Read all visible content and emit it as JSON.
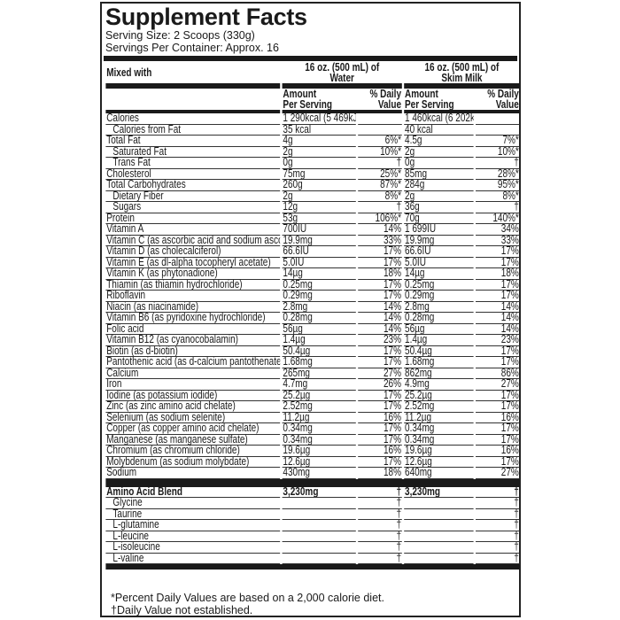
{
  "title": "Supplement Facts",
  "serving_size": "Serving Size: 2 Scoops (330g)",
  "servings_per_container": "Servings Per Container: Approx. 16",
  "header": {
    "mixed_with": "Mixed with",
    "water_line1": "16 oz. (500 mL) of",
    "water_line2": "Water",
    "milk_line1": "16 oz. (500 mL) of",
    "milk_line2": "Skim Milk",
    "amount_line1": "Amount",
    "amount_line2": "Per Serving",
    "dv_line1": "% Daily",
    "dv_line2": "Value"
  },
  "rows": [
    {
      "name": "Calories",
      "w": "1 290kcal (5 469kJ)",
      "wd": "",
      "m": "1 460kcal (6 202kJ)",
      "md": ""
    },
    {
      "name": "Calories from Fat",
      "indent": true,
      "w": "35 kcal",
      "wd": "",
      "m": "40 kcal",
      "md": ""
    },
    {
      "name": "Total Fat",
      "w": "4g",
      "wd": "6%*",
      "m": "4.5g",
      "md": "7%*"
    },
    {
      "name": "Saturated Fat",
      "indent": true,
      "w": "2g",
      "wd": "10%*",
      "m": "2g",
      "md": "10%*"
    },
    {
      "name": "Trans Fat",
      "indent": true,
      "w": "0g",
      "wd": "†",
      "m": "0g",
      "md": "†"
    },
    {
      "name": "Cholesterol",
      "w": "75mg",
      "wd": "25%*",
      "m": "85mg",
      "md": "28%*"
    },
    {
      "name": "Total Carbohydrates",
      "w": "260g",
      "wd": "87%*",
      "m": "284g",
      "md": "95%*"
    },
    {
      "name": "Dietary Fiber",
      "indent": true,
      "w": "2g",
      "wd": "8%*",
      "m": "2g",
      "md": "8%*"
    },
    {
      "name": "Sugars",
      "indent": true,
      "w": "12g",
      "wd": "†",
      "m": "36g",
      "md": "†"
    },
    {
      "name": "Protein",
      "w": "53g",
      "wd": "106%*",
      "m": "70g",
      "md": "140%*"
    },
    {
      "name": "Vitamin A",
      "w": "700IU",
      "wd": "14%",
      "m": "1 699IU",
      "md": "34%"
    },
    {
      "name": "Vitamin C (as ascorbic acid and sodium ascorbate)",
      "w": "19.9mg",
      "wd": "33%",
      "m": "19.9mg",
      "md": "33%"
    },
    {
      "name": "Vitamin D (as cholecalciferol)",
      "w": "66.6IU",
      "wd": "17%",
      "m": "66.6IU",
      "md": "17%"
    },
    {
      "name": "Vitamin E (as dl-alpha tocopheryl acetate)",
      "w": "5.0IU",
      "wd": "17%",
      "m": "5.0IU",
      "md": "17%"
    },
    {
      "name": "Vitamin K (as phytonadione)",
      "w": "14µg",
      "wd": "18%",
      "m": "14µg",
      "md": "18%"
    },
    {
      "name": "Thiamin (as thiamin hydrochloride)",
      "w": "0.25mg",
      "wd": "17%",
      "m": "0.25mg",
      "md": "17%"
    },
    {
      "name": "Riboflavin",
      "w": "0.29mg",
      "wd": "17%",
      "m": "0.29mg",
      "md": "17%"
    },
    {
      "name": "Niacin (as niacinamide)",
      "w": "2.8mg",
      "wd": "14%",
      "m": "2.8mg",
      "md": "14%"
    },
    {
      "name": "Vitamin B6 (as pyridoxine hydrochloride)",
      "w": "0.28mg",
      "wd": "14%",
      "m": "0.28mg",
      "md": "14%"
    },
    {
      "name": "Folic acid",
      "w": "56µg",
      "wd": "14%",
      "m": "56µg",
      "md": "14%"
    },
    {
      "name": "Vitamin B12 (as cyanocobalamin)",
      "w": "1.4µg",
      "wd": "23%",
      "m": "1.4µg",
      "md": "23%"
    },
    {
      "name": "Biotin (as d-biotin)",
      "w": "50.4µg",
      "wd": "17%",
      "m": "50.4µg",
      "md": "17%"
    },
    {
      "name": "Pantothenic acid (as d-calcium pantothenate)",
      "w": "1.68mg",
      "wd": "17%",
      "m": "1.68mg",
      "md": "17%"
    },
    {
      "name": "Calcium",
      "w": "265mg",
      "wd": "27%",
      "m": "862mg",
      "md": "86%"
    },
    {
      "name": "Iron",
      "w": "4.7mg",
      "wd": "26%",
      "m": "4.9mg",
      "md": "27%"
    },
    {
      "name": "Iodine (as potassium iodide)",
      "w": "25.2µg",
      "wd": "17%",
      "m": "25.2µg",
      "md": "17%"
    },
    {
      "name": "Zinc (as zinc amino acid chelate)",
      "w": "2.52mg",
      "wd": "17%",
      "m": "2.52mg",
      "md": "17%"
    },
    {
      "name": "Selenium (as sodium selenite)",
      "w": "11.2µg",
      "wd": "16%",
      "m": "11.2µg",
      "md": "16%"
    },
    {
      "name": "Copper (as copper amino acid chelate)",
      "w": "0.34mg",
      "wd": "17%",
      "m": "0.34mg",
      "md": "17%"
    },
    {
      "name": "Manganese (as manganese sulfate)",
      "w": "0.34mg",
      "wd": "17%",
      "m": "0.34mg",
      "md": "17%"
    },
    {
      "name": "Chromium (as chromium chloride)",
      "w": "19.6µg",
      "wd": "16%",
      "m": "19.6µg",
      "md": "16%"
    },
    {
      "name": "Molybdenum (as sodium molybdate)",
      "w": "12.6µg",
      "wd": "17%",
      "m": "12.6µg",
      "md": "17%"
    },
    {
      "name": "Sodium",
      "w": "430mg",
      "wd": "18%",
      "m": "640mg",
      "md": "27%"
    }
  ],
  "blend": [
    {
      "name": "Amino Acid Blend",
      "bold": true,
      "w": "3,230mg",
      "wd": "†",
      "m": "3,230mg",
      "md": "†"
    },
    {
      "name": "Glycine",
      "indent": true,
      "w": "",
      "wd": "†",
      "m": "",
      "md": "†"
    },
    {
      "name": "Taurine",
      "indent": true,
      "w": "",
      "wd": "†",
      "m": "",
      "md": "†"
    },
    {
      "name": "L-glutamine",
      "indent": true,
      "w": "",
      "wd": "†",
      "m": "",
      "md": "†"
    },
    {
      "name": "L-leucine",
      "indent": true,
      "w": "",
      "wd": "†",
      "m": "",
      "md": "†"
    },
    {
      "name": "L-isoleucine",
      "indent": true,
      "w": "",
      "wd": "†",
      "m": "",
      "md": "†"
    },
    {
      "name": "L-valine",
      "indent": true,
      "w": "",
      "wd": "†",
      "m": "",
      "md": "†"
    }
  ],
  "footnotes": {
    "percent": "*Percent Daily Values are based on a 2,000 calorie diet.",
    "dagger": "†Daily Value not established."
  }
}
